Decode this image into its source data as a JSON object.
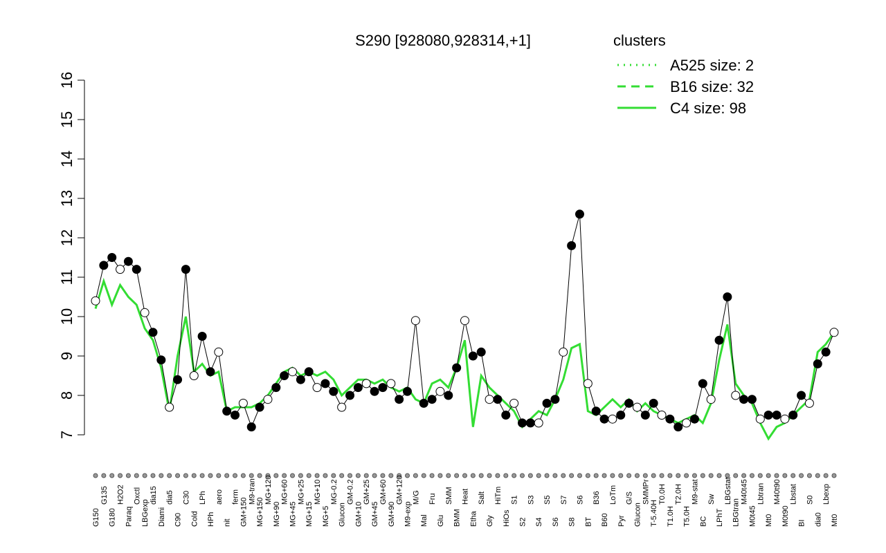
{
  "chart_data": {
    "type": "line",
    "title": "S290 [928080,928314,+1]",
    "categories": [
      "G150",
      "G135",
      "G180",
      "H2O2",
      "Paraq",
      "Oxctl",
      "LBGexp",
      "dia15",
      "Diami",
      "dia5",
      "C90",
      "C30",
      "Cold",
      "LPh",
      "HPh",
      "aero",
      "nit",
      "ferm",
      "GM+150",
      "M9-tran",
      "MG+150",
      "MG+120",
      "MG+90",
      "MG+60",
      "MG+45",
      "MG+25",
      "MG+15",
      "MG+10",
      "MG+5",
      "MG-0.2",
      "Glucon",
      "GM-0.2",
      "GM+10",
      "GM+25",
      "GM+45",
      "GM+60",
      "GM+90",
      "GM+120",
      "M9-exp",
      "M/G",
      "Mal",
      "Fru",
      "Glu",
      "SMM",
      "BMM",
      "Heat",
      "Etha",
      "Salt",
      "Gly",
      "HiTm",
      "HiOs",
      "S1",
      "S2",
      "S3",
      "S4",
      "S5",
      "S6",
      "S7",
      "S8",
      "S6",
      "BT",
      "B36",
      "B60",
      "LoTm",
      "Pyr",
      "G/S",
      "Glucon",
      "SMMPr",
      "T-5.40H",
      "T0.0H",
      "T1.0H",
      "T2.0H",
      "T5.0H",
      "M9-stat",
      "BC",
      "Sw",
      "LPhT",
      "LBGstat",
      "LBGtran",
      "M40t45",
      "M0t45",
      "Lbtran",
      "Mt0",
      "M40t90",
      "M0t90",
      "Lbstat",
      "BI",
      "S0",
      "dia0",
      "Lbexp",
      "Mt0"
    ],
    "values": [
      10.4,
      11.3,
      11.5,
      11.2,
      11.4,
      11.2,
      10.1,
      9.6,
      8.9,
      7.7,
      8.4,
      11.2,
      8.5,
      9.5,
      8.6,
      9.1,
      7.6,
      7.5,
      7.8,
      7.2,
      7.7,
      7.9,
      8.2,
      8.5,
      8.6,
      8.4,
      8.6,
      8.2,
      8.3,
      8.1,
      7.7,
      8.0,
      8.2,
      8.3,
      8.1,
      8.2,
      8.3,
      7.9,
      8.1,
      9.9,
      7.8,
      7.9,
      8.1,
      8.0,
      8.7,
      9.9,
      9.0,
      9.1,
      7.9,
      7.9,
      7.5,
      7.8,
      7.3,
      7.3,
      7.3,
      7.8,
      7.9,
      9.1,
      11.8,
      12.6,
      8.3,
      7.6,
      7.4,
      7.4,
      7.5,
      7.8,
      7.7,
      7.5,
      7.8,
      7.5,
      7.4,
      7.2,
      7.3,
      7.4,
      8.3,
      7.9,
      9.4,
      10.5,
      8.0,
      7.9,
      7.9,
      7.4,
      7.5,
      7.5,
      7.4,
      7.5,
      8.0,
      7.8,
      8.8,
      9.1,
      9.6
    ],
    "color": "#000000",
    "cluster_line": {
      "color": "#33dd33",
      "values": [
        10.2,
        10.9,
        10.3,
        10.8,
        10.5,
        10.3,
        9.7,
        9.4,
        8.7,
        7.6,
        9.0,
        10.0,
        8.6,
        8.8,
        8.5,
        8.6,
        7.6,
        7.7,
        7.7,
        7.7,
        7.8,
        8.0,
        8.3,
        8.6,
        8.7,
        8.5,
        8.6,
        8.5,
        8.6,
        8.4,
        8.0,
        8.2,
        8.4,
        8.4,
        8.3,
        8.4,
        8.2,
        8.1,
        8.2,
        7.9,
        7.8,
        8.3,
        8.4,
        8.2,
        8.7,
        9.4,
        7.2,
        8.5,
        8.2,
        8.0,
        7.8,
        7.6,
        7.2,
        7.4,
        7.6,
        7.5,
        7.9,
        8.4,
        9.2,
        9.3,
        7.6,
        7.5,
        7.7,
        7.9,
        7.7,
        7.9,
        7.6,
        7.8,
        7.6,
        7.5,
        7.4,
        7.3,
        7.4,
        7.5,
        7.3,
        7.8,
        8.9,
        9.8,
        8.3,
        8.0,
        7.8,
        7.3,
        6.9,
        7.2,
        7.3,
        7.5,
        7.7,
        7.9,
        9.1,
        9.3,
        9.6
      ]
    },
    "legend": {
      "title": "clusters",
      "color": "#33dd33",
      "entries": [
        {
          "label": "A525 size: 2",
          "dash": "dotted"
        },
        {
          "label": "B16 size: 32",
          "dash": "dashed"
        },
        {
          "label": "C4 size: 98",
          "dash": "solid"
        }
      ]
    },
    "ylim": [
      7,
      16
    ],
    "yticks": [
      7,
      8,
      9,
      10,
      11,
      12,
      13,
      14,
      15,
      16
    ]
  }
}
